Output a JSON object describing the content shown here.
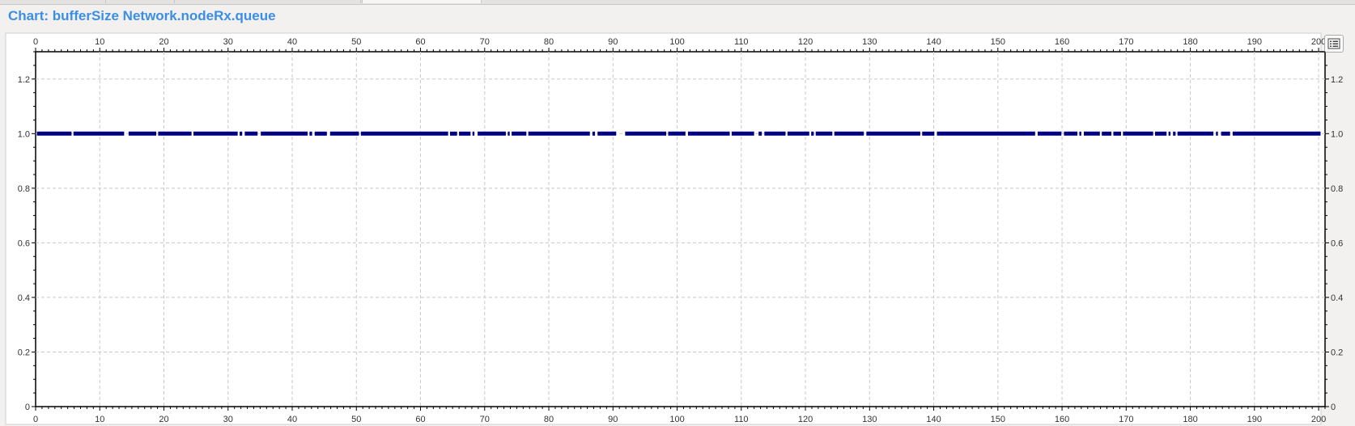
{
  "title": "Chart: bufferSize Network.nodeRx.queue",
  "icons": {
    "legend": "legend-list-icon"
  },
  "chart_data": {
    "type": "scatter",
    "xlim": [
      0,
      201
    ],
    "ylim": [
      0,
      1.3
    ],
    "x_ticks": [
      0,
      10,
      20,
      30,
      40,
      50,
      60,
      70,
      80,
      90,
      100,
      110,
      120,
      130,
      140,
      150,
      160,
      170,
      180,
      190,
      200
    ],
    "y_ticks": [
      0,
      0.2,
      0.4,
      0.6,
      0.8,
      1.0,
      1.2
    ],
    "y_tick_labels": [
      "0",
      "0.2",
      "0.4",
      "0.6",
      "0.8",
      "1.0",
      "1.2"
    ],
    "grid": true,
    "series": [
      {
        "color": "#000080",
        "value": 1.0,
        "segments": [
          [
            0.2,
            5.6
          ],
          [
            5.9,
            13.8
          ],
          [
            14.5,
            18.8
          ],
          [
            19.1,
            24.3
          ],
          [
            24.6,
            31.5
          ],
          [
            31.8,
            32.2
          ],
          [
            32.6,
            34.6
          ],
          [
            35.1,
            42.4
          ],
          [
            42.7,
            43.1
          ],
          [
            43.5,
            45.4
          ],
          [
            45.9,
            50.4
          ],
          [
            50.7,
            64.3
          ],
          [
            64.6,
            65.7
          ],
          [
            66.0,
            67.8
          ],
          [
            68.1,
            68.4
          ],
          [
            68.9,
            73.3
          ],
          [
            73.6,
            73.9
          ],
          [
            74.2,
            76.5
          ],
          [
            76.8,
            86.4
          ],
          [
            86.8,
            87.2
          ],
          [
            87.6,
            90.5
          ],
          [
            91.9,
            98.3
          ],
          [
            98.6,
            101.3
          ],
          [
            101.7,
            108.2
          ],
          [
            108.5,
            112.0
          ],
          [
            112.7,
            113.2
          ],
          [
            113.6,
            116.9
          ],
          [
            117.2,
            120.6
          ],
          [
            120.9,
            121.3
          ],
          [
            121.6,
            124.2
          ],
          [
            124.5,
            129.1
          ],
          [
            129.5,
            137.9
          ],
          [
            138.2,
            140.1
          ],
          [
            140.5,
            155.8
          ],
          [
            156.2,
            159.9
          ],
          [
            160.3,
            162.4
          ],
          [
            162.7,
            163.0
          ],
          [
            163.4,
            165.9
          ],
          [
            166.2,
            167.7
          ],
          [
            168.0,
            169.2
          ],
          [
            169.5,
            174.2
          ],
          [
            174.5,
            176.3
          ],
          [
            176.6,
            176.9
          ],
          [
            177.3,
            177.7
          ],
          [
            178.0,
            183.6
          ],
          [
            184.0,
            184.3
          ],
          [
            184.8,
            186.2
          ],
          [
            186.6,
            200.3
          ]
        ]
      }
    ]
  }
}
